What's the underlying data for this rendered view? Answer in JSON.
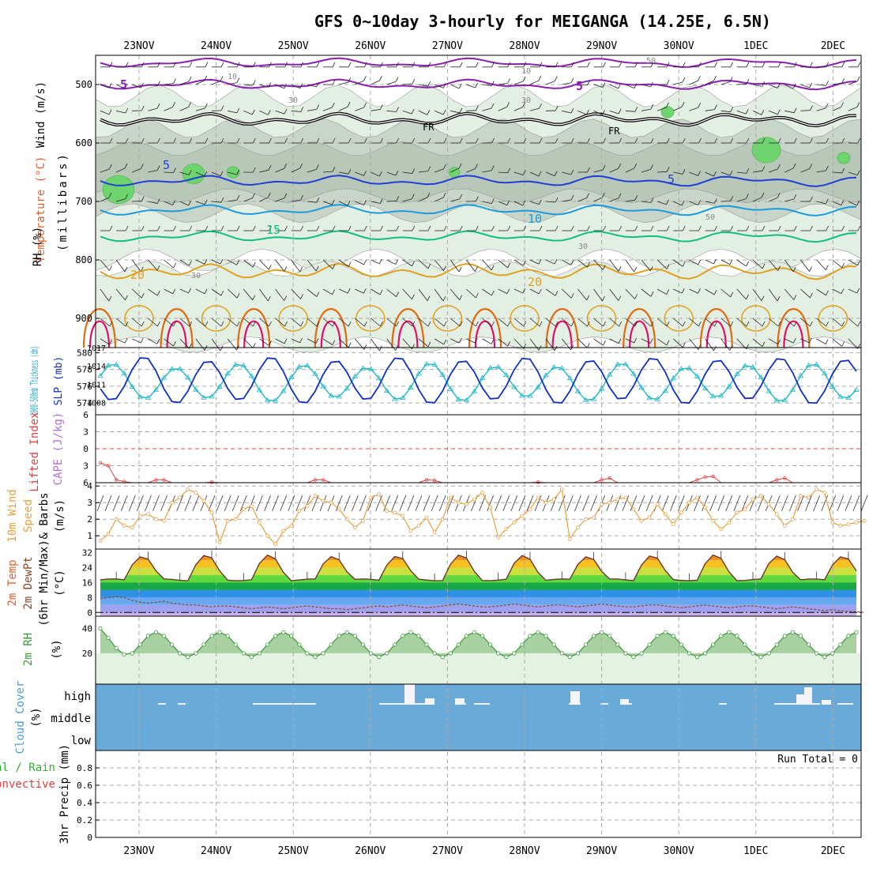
{
  "chart_data": {
    "type": "meteogram",
    "title": "GFS 0~10day 3-hourly for MEIGANGA (14.25E, 6.5N)",
    "dates": [
      "23NOV",
      "24NOV",
      "25NOV",
      "26NOV",
      "27NOV",
      "28NOV",
      "29NOV",
      "30NOV",
      "1DEC",
      "2DEC"
    ],
    "colors": {
      "purple": "#8a1fb0",
      "black": "#000000",
      "blue5": "#1f3fd6",
      "blue10": "#1a9be0",
      "green15": "#10c07a",
      "orange20": "#e0a020",
      "orange25": "#e06a10",
      "red30": "#e0106a",
      "cyan": "#20b8c8",
      "navy": "#1030c0",
      "lirange": "#e04040",
      "wind10": "#e8a040",
      "rhgreen": "#3a9a3a",
      "cloud": "#6aaad8",
      "grid": "#aaaaaa"
    },
    "upper_air": {
      "ylabel_wind": "Wind (m/s)",
      "ylabel_temp": "Temperature (°C)",
      "ylabel_rh": "RH (%)",
      "ylabel_p": "(millibars)",
      "p_ticks": [
        "500",
        "600",
        "700",
        "800",
        "900"
      ],
      "p_range": [
        450,
        950
      ],
      "contour_labels": [
        "5",
        "5",
        "FR",
        "FR",
        "5",
        "5",
        "10",
        "15",
        "20",
        "20",
        "10",
        "10",
        "30",
        "30",
        "50",
        "50",
        "30",
        "30"
      ],
      "isotherm_levels": {
        "m5": 500,
        "fr": 560,
        "p5": 665,
        "p10": 715,
        "p15": 760,
        "p20": 820
      }
    },
    "thickness_slp": {
      "ylabel_thk": "1000-500mb Thickness (dm)",
      "ylabel_slp": "SLP (mb)",
      "thk_ticks": [
        "580",
        "578",
        "576",
        "574"
      ],
      "thk_range": [
        572.6,
        580.6
      ],
      "slp_ticks": [
        "1017",
        "1014",
        "1011",
        "1008"
      ],
      "slp_range": [
        1006,
        1017
      ],
      "slp_mean": 1011.3,
      "slp_amp": 2.8,
      "thk_mean": 576.7,
      "thk_amp": 2.6
    },
    "cape_li": {
      "ylabel_li": "Lifted Index",
      "ylabel_cape": "CAPE (J/kg)",
      "li_ticks": [
        "-6",
        "-3",
        "0",
        "3",
        "6"
      ],
      "li_range": [
        -6,
        6
      ],
      "li_values": [
        2.5,
        3,
        5.5,
        5.8,
        6,
        6,
        6,
        5.5,
        5.5,
        6,
        6,
        6,
        6,
        6,
        5.9,
        6,
        6,
        6,
        6,
        6,
        6,
        6,
        6,
        6,
        6,
        6,
        6,
        5.5,
        5.5,
        6,
        6,
        6,
        6,
        6,
        6,
        6,
        6,
        6,
        6,
        6,
        6,
        5.5,
        5.6,
        6,
        6,
        6,
        6,
        6,
        6,
        6,
        6,
        6,
        6,
        6,
        6,
        5.9,
        6,
        6,
        6,
        6,
        6,
        6,
        6,
        5.5,
        5.2,
        6,
        6,
        6,
        6,
        6,
        6,
        6,
        6,
        6,
        6,
        5.5,
        5.0,
        4.9,
        6,
        6,
        6,
        6,
        6,
        6,
        6,
        5.5,
        5.2,
        6,
        6,
        6,
        6,
        6,
        6,
        6,
        6
      ]
    },
    "wind10m": {
      "ylabel": "10m Wind Speed & Barbs (m/s)",
      "ylabel_1": "10m Wind",
      "ylabel_2": "Speed",
      "ylabel_3": "& Barbs",
      "ylabel_4": "(m/s)",
      "ticks": [
        "4",
        "3",
        "2",
        "1"
      ],
      "range": [
        0.2,
        4.2
      ],
      "values": [
        0.7,
        1.1,
        2,
        1.6,
        1.5,
        2.2,
        2.3,
        2,
        1.9,
        3,
        3.3,
        3.8,
        3.6,
        3.1,
        2.4,
        0.6,
        1.9,
        2,
        2.6,
        2.8,
        1.8,
        1,
        0.5,
        1.3,
        1.6,
        2.5,
        2.8,
        3.4,
        3.1,
        3,
        2.6,
        2,
        1.5,
        1.9,
        3.3,
        3.5,
        2.5,
        2.4,
        2.2,
        1.3,
        1.6,
        2.1,
        1.2,
        2,
        3.3,
        3,
        2.9,
        3.2,
        3.6,
        2.7,
        0.9,
        1.4,
        1.8,
        2.2,
        2.6,
        3.3,
        3,
        3.2,
        3.8,
        0.8,
        1.5,
        2,
        2.1,
        2.9,
        3,
        3.2,
        3.3,
        2.6,
        1.9,
        2.1,
        2.9,
        2.3,
        1.7,
        2.4,
        3,
        3.3,
        2.7,
        1.9,
        1.4,
        1.8,
        2.4,
        2.6,
        3.2,
        3.4,
        2.9,
        2.3,
        1.6,
        2,
        3.4,
        3.3,
        3.8,
        3.6,
        1.8,
        1.6,
        1.7,
        1.8,
        1.9
      ]
    },
    "temp2m": {
      "ylabel_1": "2m Temp",
      "ylabel_2": "2m DewPt",
      "ylabel_3": "(6hr Min/Max)",
      "ylabel_4": "(°C)",
      "ticks": [
        "32",
        "24",
        "16",
        "8",
        "0"
      ],
      "range": [
        -2,
        34
      ],
      "t_min": 17.5,
      "t_max": 30.5,
      "dew_values": [
        7.5,
        8,
        8.5,
        8,
        6.5,
        5.5,
        5,
        5.5,
        6,
        5,
        4.5,
        4,
        4,
        3.5,
        3,
        3.5,
        3.5,
        3,
        2.5,
        2,
        2.5,
        3,
        2.5,
        2,
        2.5,
        3,
        3.5,
        3,
        2.5,
        2,
        2,
        1.5,
        2,
        2.5,
        3,
        3.5,
        3,
        3.5,
        4,
        3.5,
        3,
        2.5,
        3,
        3.5,
        4,
        4.5,
        4,
        3.5,
        3,
        3,
        3.5,
        4,
        4.5,
        4,
        3.5,
        3,
        3.5,
        4,
        4,
        3.5,
        3,
        3.5,
        4,
        4.5,
        4,
        3.5,
        3,
        3,
        3.5,
        4,
        4,
        3.5,
        3,
        2.5,
        3,
        3.5,
        4,
        3.5,
        3,
        2.5,
        3,
        3.5,
        3.5,
        3,
        2.5,
        2,
        2.5,
        3,
        2.5,
        2,
        1.5,
        1,
        1.5,
        1,
        0.5,
        0.5,
        0
      ]
    },
    "rh2m": {
      "ylabel_1": "2m RH",
      "ylabel_2": "(%)",
      "ticks": [
        "40",
        "20"
      ],
      "range": [
        -5,
        50
      ],
      "rh_min": 17,
      "rh_max": 37
    },
    "cloud": {
      "ylabel_1": "Cloud Cover",
      "ylabel_2": "(%)",
      "levels": [
        "high",
        "middle",
        "low"
      ]
    },
    "precip": {
      "ylabel_1": "Total / Rain",
      "ylabel_2": "Convective",
      "ylabel_3": "3hr Precip (mm)",
      "ticks": [
        "0.8",
        "0.6",
        "0.4",
        "0.2",
        "0"
      ],
      "range": [
        0,
        1.0
      ],
      "run_total": "Run Total = 0"
    }
  }
}
